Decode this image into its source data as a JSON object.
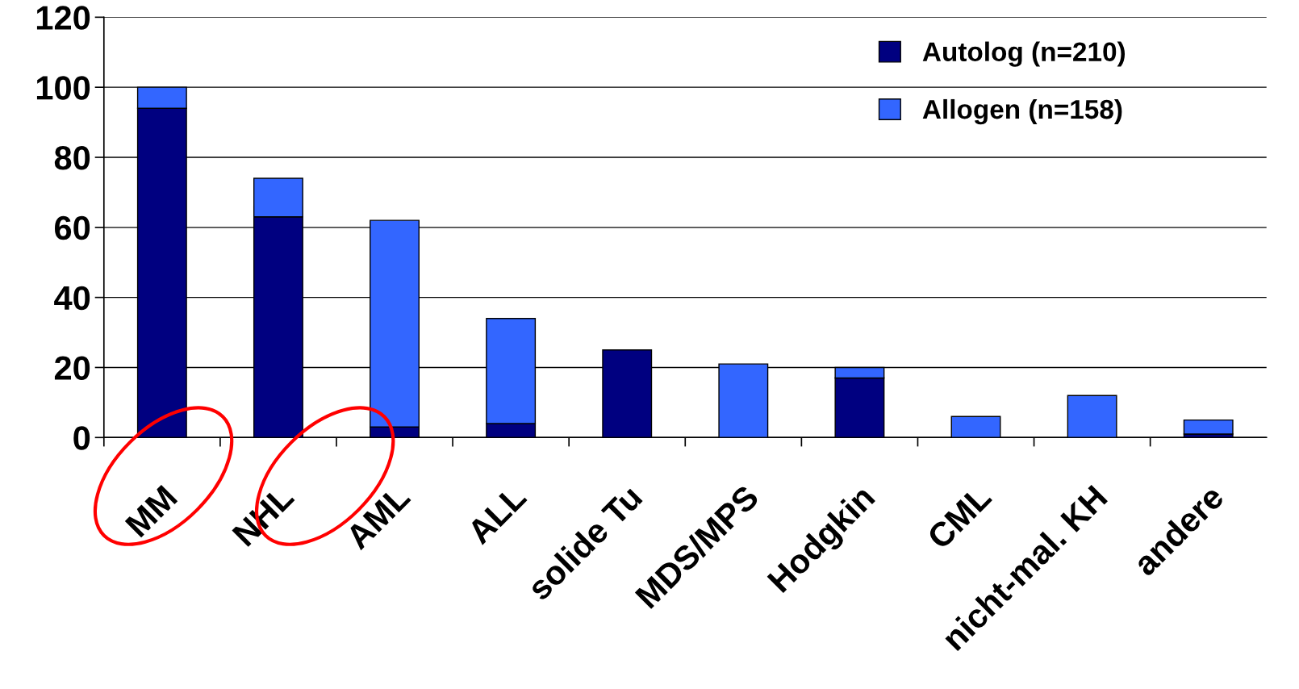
{
  "chart_data": {
    "type": "bar",
    "stacked": true,
    "categories": [
      "MM",
      "NHL",
      "AML",
      "ALL",
      "solide Tu",
      "MDS/MPS",
      "Hodgkin",
      "CML",
      "nicht-mal. KH",
      "andere"
    ],
    "series": [
      {
        "name": "Autolog (n=210)",
        "color": "#000080",
        "values": [
          94,
          63,
          3,
          4,
          25,
          0,
          17,
          0,
          0,
          1
        ]
      },
      {
        "name": "Allogen (n=158)",
        "color": "#3366ff",
        "values": [
          6,
          11,
          59,
          30,
          0,
          21,
          3,
          6,
          12,
          4
        ]
      }
    ],
    "ylim": [
      0,
      120
    ],
    "yticks": [
      0,
      20,
      40,
      60,
      80,
      100,
      120
    ],
    "grid": "y",
    "legend": "top right"
  }
}
